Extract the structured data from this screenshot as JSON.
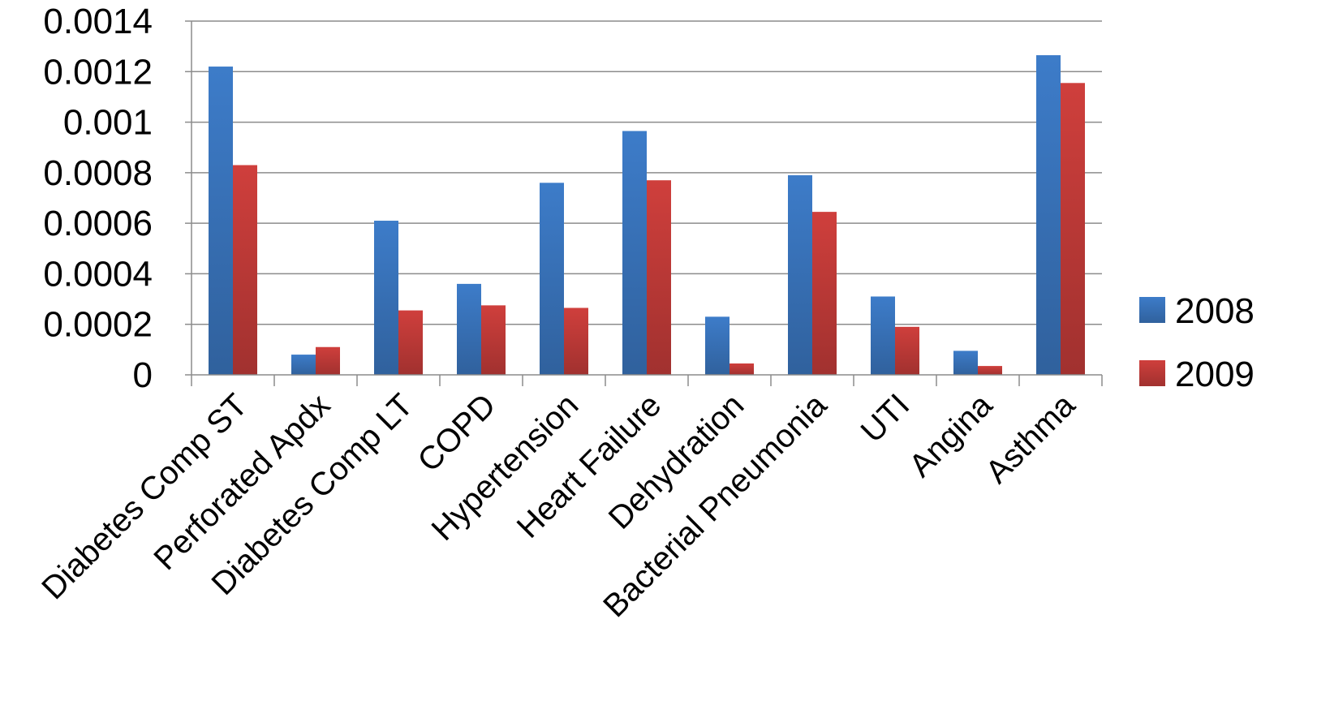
{
  "chart_data": {
    "type": "bar",
    "categories": [
      "Diabetes Comp ST",
      "Perforated Apdx",
      "Diabetes Comp LT",
      "COPD",
      "Hypertension",
      "Heart Failure",
      "Dehydration",
      "Bacterial Pneumonia",
      "UTI",
      "Angina",
      "Asthma"
    ],
    "series": [
      {
        "name": "2008",
        "color": "#3d7cc9",
        "values": [
          0.00122,
          8e-05,
          0.00061,
          0.00036,
          0.00076,
          0.000965,
          0.00023,
          0.00079,
          0.00031,
          9.5e-05,
          0.001265
        ]
      },
      {
        "name": "2009",
        "color": "#cf3f3c",
        "values": [
          0.00083,
          0.00011,
          0.000255,
          0.000275,
          0.000265,
          0.00077,
          4.5e-05,
          0.000645,
          0.00019,
          3.5e-05,
          0.001155
        ]
      }
    ],
    "yticks": [
      "0",
      "0.0002",
      "0.0004",
      "0.0006",
      "0.0008",
      "0.001",
      "0.0012",
      "0.0014"
    ],
    "ylim": [
      0,
      0.0014
    ],
    "grid": true,
    "legend_position": "right"
  }
}
